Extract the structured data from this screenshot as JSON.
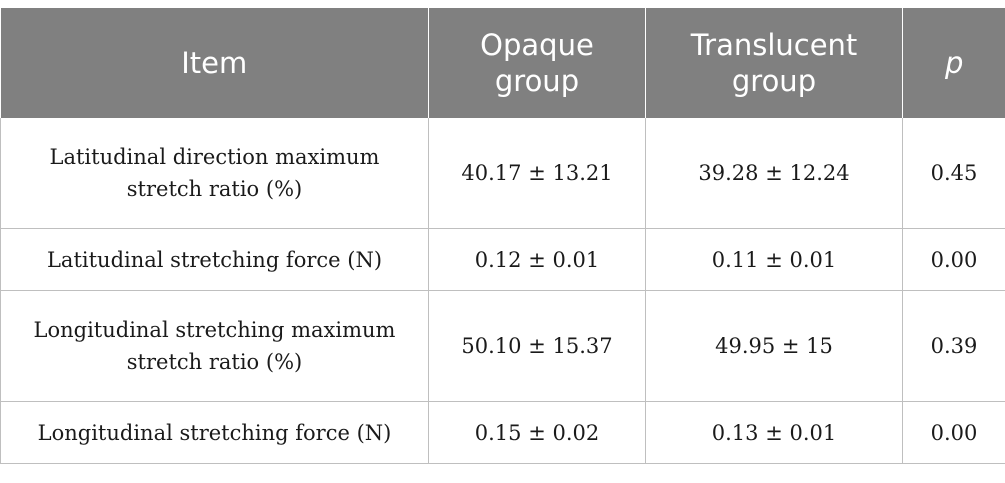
{
  "table": {
    "headers": {
      "item": "Item",
      "opaque": "Opaque group",
      "translucent": "Translucent group",
      "p": "p"
    },
    "rows": [
      {
        "item": "Latitudinal direction maximum stretch ratio (%)",
        "opaque": "40.17 ± 13.21",
        "translucent": "39.28 ± 12.24",
        "p": "0.45"
      },
      {
        "item": "Latitudinal stretching force (N)",
        "opaque": "0.12 ± 0.01",
        "translucent": "0.11 ± 0.01",
        "p": "0.00"
      },
      {
        "item": "Longitudinal stretching maximum stretch ratio (%)",
        "opaque": "50.10 ± 15.37",
        "translucent": "49.95 ± 15",
        "p": "0.39"
      },
      {
        "item": "Longitudinal stretching force (N)",
        "opaque": "0.15 ± 0.02",
        "translucent": "0.13 ± 0.01",
        "p": "0.00"
      }
    ]
  }
}
